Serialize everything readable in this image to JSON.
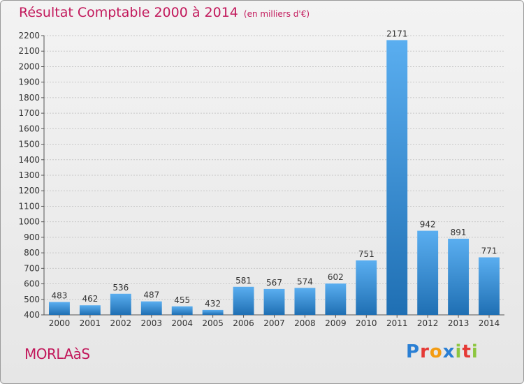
{
  "title": "Résultat Comptable 2000 à 2014",
  "unit_label": "(en milliers d'€)",
  "commune": "MORLAàS",
  "logo": {
    "letters": [
      "P",
      "r",
      "o",
      "x",
      "i",
      "t",
      "i"
    ],
    "colors": [
      "#2a7fd4",
      "#e53935",
      "#f39c12",
      "#2a7fd4",
      "#8cc63f",
      "#e53935",
      "#8cc63f"
    ]
  },
  "colors": {
    "title": "#c2185b",
    "bar_light": "#5aaef0",
    "bar_dark": "#1f6fb3"
  },
  "chart_data": {
    "type": "bar",
    "title": "Résultat Comptable 2000 à 2014",
    "subtitle": "(en milliers d'€)",
    "xlabel": "",
    "ylabel": "",
    "categories": [
      "2000",
      "2001",
      "2002",
      "2003",
      "2004",
      "2005",
      "2006",
      "2007",
      "2008",
      "2009",
      "2010",
      "2011",
      "2012",
      "2013",
      "2014"
    ],
    "values": [
      483,
      462,
      536,
      487,
      455,
      432,
      581,
      567,
      574,
      602,
      751,
      2171,
      942,
      891,
      771
    ],
    "ylim": [
      400,
      2200
    ],
    "ytick_step": 100,
    "grid": true
  }
}
